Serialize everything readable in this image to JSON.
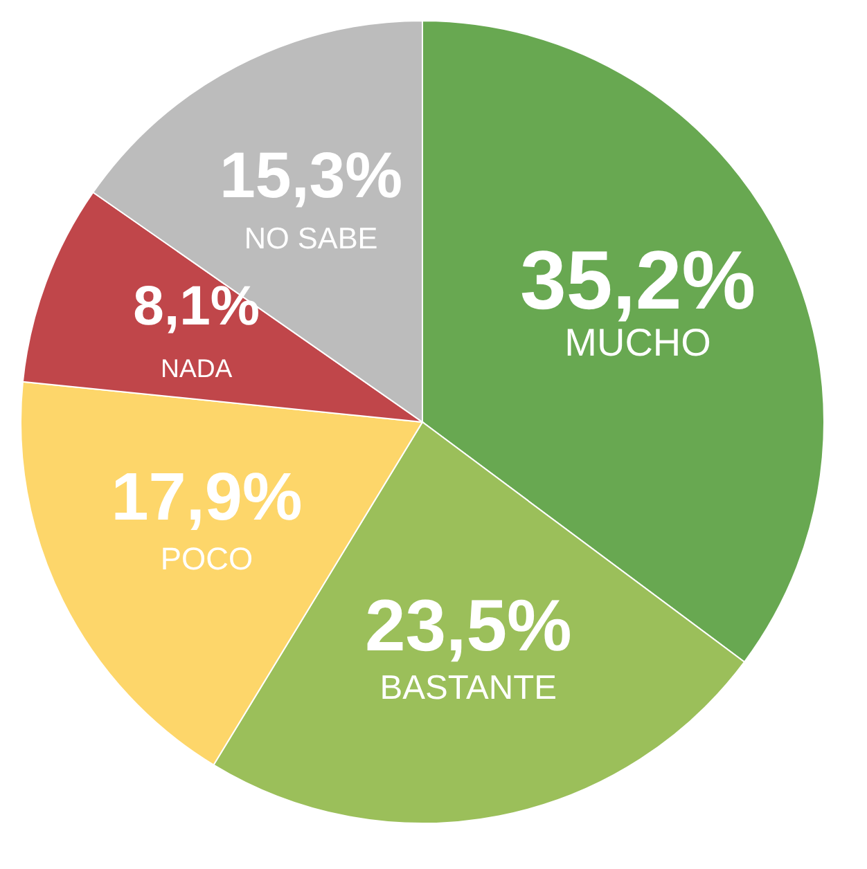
{
  "chart_data": {
    "type": "pie",
    "categories": [
      "MUCHO",
      "BASTANTE",
      "POCO",
      "NADA",
      "NO SABE"
    ],
    "values": [
      35.2,
      23.5,
      17.9,
      8.1,
      15.3
    ],
    "value_labels": [
      "35,2%",
      "23,5%",
      "17,9%",
      "8,1%",
      "15,3%"
    ],
    "colors": [
      "#68a851",
      "#9bbf5a",
      "#fdd66a",
      "#c0464a",
      "#bcbcbc"
    ],
    "legend": false
  }
}
